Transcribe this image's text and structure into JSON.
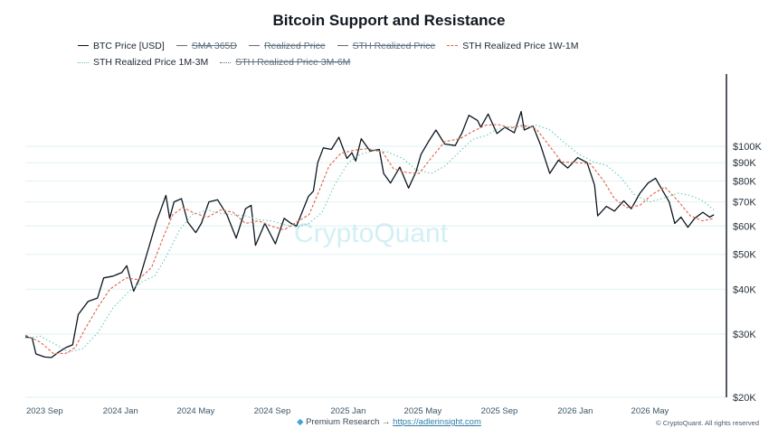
{
  "chart_data": {
    "type": "line",
    "title": "Bitcoin Support and Resistance",
    "y_scale": "log",
    "ylim": [
      20000,
      150000
    ],
    "xlim": [
      "2023-08-01",
      "2026-09-01"
    ],
    "y_ticks": [
      {
        "value": 20000,
        "label": "$20K"
      },
      {
        "value": 30000,
        "label": "$30K"
      },
      {
        "value": 40000,
        "label": "$40K"
      },
      {
        "value": 50000,
        "label": "$50K"
      },
      {
        "value": 60000,
        "label": "$60K"
      },
      {
        "value": 70000,
        "label": "$70K"
      },
      {
        "value": 80000,
        "label": "$80K"
      },
      {
        "value": 90000,
        "label": "$90K"
      },
      {
        "value": 100000,
        "label": "$100K"
      }
    ],
    "x_ticks": [
      {
        "date": "2023-09-01",
        "label": "2023 Sep"
      },
      {
        "date": "2024-01-01",
        "label": "2024 Jan"
      },
      {
        "date": "2024-05-01",
        "label": "2024 May"
      },
      {
        "date": "2024-09-01",
        "label": "2024 Sep"
      },
      {
        "date": "2025-01-01",
        "label": "2025 Jan"
      },
      {
        "date": "2025-05-01",
        "label": "2025 May"
      },
      {
        "date": "2025-09-01",
        "label": "2025 Sep"
      },
      {
        "date": "2026-01-01",
        "label": "2026 Jan"
      },
      {
        "date": "2026-05-01",
        "label": "2026 May"
      }
    ],
    "grid": true,
    "legend_position": "top",
    "watermark": "CryptoQuant",
    "series": [
      {
        "name": "BTC Price [USD]",
        "color": "#0b1520",
        "style": "solid",
        "visible": true,
        "data": [
          [
            "2023-08-01",
            29500
          ],
          [
            "2023-08-12",
            29200
          ],
          [
            "2023-08-18",
            26400
          ],
          [
            "2023-09-01",
            25900
          ],
          [
            "2023-09-12",
            25800
          ],
          [
            "2023-09-22",
            26600
          ],
          [
            "2023-10-05",
            27500
          ],
          [
            "2023-10-16",
            28000
          ],
          [
            "2023-10-25",
            34000
          ],
          [
            "2023-11-10",
            37000
          ],
          [
            "2023-11-25",
            37800
          ],
          [
            "2023-12-05",
            43000
          ],
          [
            "2023-12-20",
            43500
          ],
          [
            "2024-01-03",
            44500
          ],
          [
            "2024-01-11",
            46500
          ],
          [
            "2024-01-22",
            39500
          ],
          [
            "2024-02-01",
            43000
          ],
          [
            "2024-02-15",
            52000
          ],
          [
            "2024-02-28",
            62000
          ],
          [
            "2024-03-05",
            66000
          ],
          [
            "2024-03-14",
            73000
          ],
          [
            "2024-03-20",
            63000
          ],
          [
            "2024-03-27",
            70000
          ],
          [
            "2024-04-08",
            71500
          ],
          [
            "2024-04-18",
            61500
          ],
          [
            "2024-05-01",
            57500
          ],
          [
            "2024-05-10",
            61000
          ],
          [
            "2024-05-22",
            70000
          ],
          [
            "2024-06-05",
            71000
          ],
          [
            "2024-06-20",
            64500
          ],
          [
            "2024-07-05",
            55500
          ],
          [
            "2024-07-20",
            67000
          ],
          [
            "2024-07-29",
            68500
          ],
          [
            "2024-08-05",
            53000
          ],
          [
            "2024-08-20",
            61000
          ],
          [
            "2024-09-06",
            53500
          ],
          [
            "2024-09-20",
            63000
          ],
          [
            "2024-10-01",
            61000
          ],
          [
            "2024-10-10",
            60000
          ],
          [
            "2024-10-29",
            72500
          ],
          [
            "2024-11-06",
            75000
          ],
          [
            "2024-11-13",
            90000
          ],
          [
            "2024-11-22",
            99000
          ],
          [
            "2024-12-05",
            98000
          ],
          [
            "2024-12-17",
            106000
          ],
          [
            "2024-12-30",
            92500
          ],
          [
            "2025-01-07",
            96000
          ],
          [
            "2025-01-13",
            91000
          ],
          [
            "2025-01-22",
            105000
          ],
          [
            "2025-02-05",
            97000
          ],
          [
            "2025-02-20",
            98000
          ],
          [
            "2025-02-27",
            84000
          ],
          [
            "2025-03-10",
            79000
          ],
          [
            "2025-03-25",
            87500
          ],
          [
            "2025-04-08",
            76500
          ],
          [
            "2025-04-20",
            85000
          ],
          [
            "2025-04-28",
            95000
          ],
          [
            "2025-05-10",
            103000
          ],
          [
            "2025-05-22",
            111000
          ],
          [
            "2025-06-05",
            101500
          ],
          [
            "2025-06-22",
            100500
          ],
          [
            "2025-07-03",
            109000
          ],
          [
            "2025-07-14",
            122000
          ],
          [
            "2025-07-28",
            118000
          ],
          [
            "2025-08-02",
            113000
          ],
          [
            "2025-08-14",
            123000
          ],
          [
            "2025-08-28",
            108500
          ],
          [
            "2025-09-10",
            113000
          ],
          [
            "2025-09-25",
            109000
          ],
          [
            "2025-10-06",
            125000
          ],
          [
            "2025-10-11",
            111000
          ],
          [
            "2025-10-25",
            114000
          ],
          [
            "2025-11-06",
            101000
          ],
          [
            "2025-11-21",
            84000
          ],
          [
            "2025-12-05",
            91500
          ],
          [
            "2025-12-20",
            87000
          ],
          [
            "2026-01-05",
            93000
          ],
          [
            "2026-01-20",
            90000
          ],
          [
            "2026-02-01",
            78000
          ],
          [
            "2026-02-06",
            64000
          ],
          [
            "2026-02-20",
            68000
          ],
          [
            "2026-03-05",
            66000
          ],
          [
            "2026-03-20",
            70500
          ],
          [
            "2026-04-01",
            67000
          ],
          [
            "2026-04-15",
            74000
          ],
          [
            "2026-04-28",
            79000
          ],
          [
            "2026-05-10",
            81500
          ],
          [
            "2026-05-20",
            76000
          ],
          [
            "2026-06-01",
            70000
          ],
          [
            "2026-06-10",
            61000
          ],
          [
            "2026-06-20",
            63500
          ],
          [
            "2026-07-01",
            59500
          ],
          [
            "2026-07-12",
            63000
          ],
          [
            "2026-07-25",
            65500
          ],
          [
            "2026-08-05",
            63500
          ],
          [
            "2026-08-12",
            64500
          ]
        ]
      },
      {
        "name": "SMA 365D",
        "color": "#5d6f7d",
        "style": "solid",
        "visible": false,
        "data": []
      },
      {
        "name": "Realized Price",
        "color": "#5d6f7d",
        "style": "solid",
        "visible": false,
        "data": []
      },
      {
        "name": "STH Realized Price",
        "color": "#5d6f7d",
        "style": "solid",
        "visible": false,
        "data": []
      },
      {
        "name": "STH Realized Price 1W-1M",
        "color": "#e0624a",
        "style": "dashed",
        "visible": true,
        "data": [
          [
            "2023-08-01",
            29800
          ],
          [
            "2023-08-25",
            28500
          ],
          [
            "2023-09-15",
            26500
          ],
          [
            "2023-10-05",
            26500
          ],
          [
            "2023-10-20",
            27500
          ],
          [
            "2023-11-05",
            31000
          ],
          [
            "2023-11-25",
            35500
          ],
          [
            "2023-12-15",
            40000
          ],
          [
            "2024-01-10",
            43000
          ],
          [
            "2024-01-30",
            42500
          ],
          [
            "2024-02-20",
            46000
          ],
          [
            "2024-03-10",
            56000
          ],
          [
            "2024-03-25",
            64500
          ],
          [
            "2024-04-10",
            67500
          ],
          [
            "2024-04-30",
            65000
          ],
          [
            "2024-05-20",
            63500
          ],
          [
            "2024-06-10",
            66500
          ],
          [
            "2024-06-30",
            65500
          ],
          [
            "2024-07-20",
            61000
          ],
          [
            "2024-08-10",
            62000
          ],
          [
            "2024-08-30",
            60000
          ],
          [
            "2024-09-20",
            58500
          ],
          [
            "2024-10-10",
            61500
          ],
          [
            "2024-10-30",
            64500
          ],
          [
            "2024-11-15",
            75000
          ],
          [
            "2024-12-01",
            88000
          ],
          [
            "2024-12-20",
            95500
          ],
          [
            "2025-01-10",
            97500
          ],
          [
            "2025-02-01",
            98500
          ],
          [
            "2025-02-25",
            96500
          ],
          [
            "2025-03-15",
            86500
          ],
          [
            "2025-04-05",
            84500
          ],
          [
            "2025-04-25",
            84000
          ],
          [
            "2025-05-15",
            93000
          ],
          [
            "2025-06-05",
            103000
          ],
          [
            "2025-06-30",
            105000
          ],
          [
            "2025-07-20",
            110000
          ],
          [
            "2025-08-10",
            114500
          ],
          [
            "2025-08-30",
            115000
          ],
          [
            "2025-09-20",
            112500
          ],
          [
            "2025-10-10",
            114500
          ],
          [
            "2025-10-30",
            112000
          ],
          [
            "2025-11-20",
            100500
          ],
          [
            "2025-12-10",
            90500
          ],
          [
            "2026-01-05",
            90000
          ],
          [
            "2026-01-25",
            89500
          ],
          [
            "2026-02-15",
            80500
          ],
          [
            "2026-03-05",
            71500
          ],
          [
            "2026-03-25",
            67500
          ],
          [
            "2026-04-15",
            68500
          ],
          [
            "2026-05-05",
            73500
          ],
          [
            "2026-05-25",
            77000
          ],
          [
            "2026-06-15",
            70500
          ],
          [
            "2026-07-05",
            64000
          ],
          [
            "2026-07-25",
            62000
          ],
          [
            "2026-08-12",
            63000
          ]
        ]
      },
      {
        "name": "STH Realized Price 1M-3M",
        "color": "#67c9b6",
        "style": "dotted",
        "visible": true,
        "data": [
          [
            "2023-08-01",
            29200
          ],
          [
            "2023-08-25",
            29600
          ],
          [
            "2023-09-15",
            28300
          ],
          [
            "2023-10-10",
            26700
          ],
          [
            "2023-11-01",
            27300
          ],
          [
            "2023-11-25",
            30200
          ],
          [
            "2023-12-20",
            35500
          ],
          [
            "2024-01-15",
            39500
          ],
          [
            "2024-02-05",
            42000
          ],
          [
            "2024-02-25",
            43500
          ],
          [
            "2024-03-15",
            49500
          ],
          [
            "2024-04-05",
            58500
          ],
          [
            "2024-04-25",
            64500
          ],
          [
            "2024-05-20",
            66500
          ],
          [
            "2024-06-10",
            65000
          ],
          [
            "2024-06-30",
            64500
          ],
          [
            "2024-07-20",
            64000
          ],
          [
            "2024-08-10",
            62500
          ],
          [
            "2024-08-30",
            62000
          ],
          [
            "2024-09-20",
            60500
          ],
          [
            "2024-10-10",
            59500
          ],
          [
            "2024-10-30",
            61000
          ],
          [
            "2024-11-20",
            65500
          ],
          [
            "2024-12-10",
            78000
          ],
          [
            "2025-01-01",
            90000
          ],
          [
            "2025-01-20",
            95000
          ],
          [
            "2025-02-10",
            97000
          ],
          [
            "2025-03-05",
            96500
          ],
          [
            "2025-03-30",
            92500
          ],
          [
            "2025-04-20",
            86000
          ],
          [
            "2025-05-15",
            84000
          ],
          [
            "2025-06-05",
            88000
          ],
          [
            "2025-06-30",
            97000
          ],
          [
            "2025-07-20",
            104500
          ],
          [
            "2025-08-10",
            107000
          ],
          [
            "2025-08-30",
            112000
          ],
          [
            "2025-09-20",
            113500
          ],
          [
            "2025-10-10",
            113000
          ],
          [
            "2025-10-30",
            114500
          ],
          [
            "2025-11-20",
            111500
          ],
          [
            "2025-12-10",
            104000
          ],
          [
            "2026-01-05",
            95500
          ],
          [
            "2026-01-30",
            90500
          ],
          [
            "2026-02-20",
            88500
          ],
          [
            "2026-03-15",
            82000
          ],
          [
            "2026-04-05",
            73500
          ],
          [
            "2026-04-30",
            70000
          ],
          [
            "2026-05-20",
            71500
          ],
          [
            "2026-06-15",
            74000
          ],
          [
            "2026-07-05",
            73000
          ],
          [
            "2026-07-25",
            70500
          ],
          [
            "2026-08-12",
            66500
          ]
        ]
      },
      {
        "name": "STH Realized Price 3M-6M",
        "color": "#5d6f7d",
        "style": "dotted",
        "visible": false,
        "data": []
      }
    ]
  },
  "footer": {
    "premium_label": "Premium Research →",
    "premium_url": "https://adlerinsight.com",
    "copyright": "© CryptoQuant. All rights reserved"
  }
}
